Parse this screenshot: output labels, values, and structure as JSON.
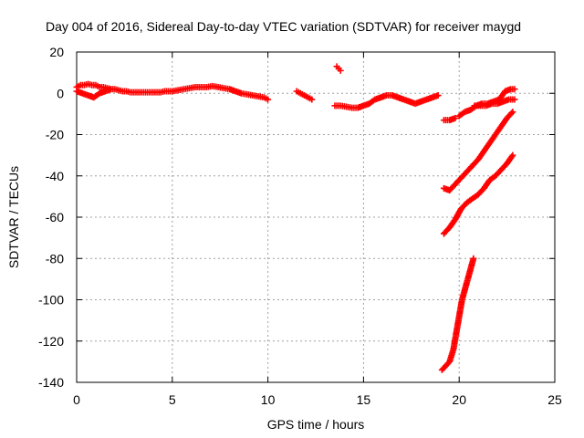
{
  "chart_data": {
    "type": "scatter",
    "title": "Day 004 of 2016, Sidereal Day-to-day VTEC variation (SDTVAR) for receiver maygd",
    "xlabel": "GPS time / hours",
    "ylabel": "SDTVAR / TECUs",
    "xlim": [
      0,
      25
    ],
    "ylim": [
      -140,
      20
    ],
    "xticks": [
      0,
      5,
      10,
      15,
      20,
      25
    ],
    "yticks": [
      20,
      0,
      -20,
      -40,
      -60,
      -80,
      -100,
      -120,
      -140
    ],
    "grid": true,
    "marker": "+",
    "color": "#ff0000",
    "series": [
      {
        "name": "band-0-5h",
        "x": [
          0.0,
          0.2,
          0.4,
          0.6,
          0.8,
          1.0,
          1.2,
          1.4,
          1.6,
          1.8,
          2.0,
          2.2,
          2.4,
          2.6,
          2.8,
          3.0,
          3.2,
          3.4,
          3.6,
          3.8,
          4.0,
          4.2,
          4.4,
          4.6,
          4.8,
          5.0
        ],
        "y": [
          3,
          4,
          4,
          4.5,
          4,
          4,
          3,
          3,
          2.5,
          2,
          2,
          1.5,
          1,
          1,
          0.5,
          0.5,
          0.5,
          0.5,
          0.5,
          0.5,
          0.5,
          0.5,
          0.5,
          1,
          1,
          1
        ]
      },
      {
        "name": "band-0-2h-lower",
        "x": [
          0.0,
          0.3,
          0.6,
          0.9,
          1.2,
          1.5,
          1.8
        ],
        "y": [
          1,
          0,
          -1,
          -2,
          0,
          1,
          2
        ]
      },
      {
        "name": "band-5-10h",
        "x": [
          5.0,
          5.3,
          5.6,
          5.9,
          6.2,
          6.5,
          6.8,
          7.1,
          7.4,
          7.7,
          8.0,
          8.3,
          8.6,
          8.9,
          9.2,
          9.5,
          9.8,
          10.0
        ],
        "y": [
          1,
          1.5,
          2,
          2.5,
          3,
          3,
          3,
          3.5,
          3,
          2.5,
          2,
          1,
          0,
          -0.5,
          -1,
          -1.5,
          -2,
          -3
        ]
      },
      {
        "name": "band-11.5-12.5h",
        "x": [
          11.5,
          11.7,
          11.9,
          12.1,
          12.3
        ],
        "y": [
          1,
          0,
          -1,
          -2,
          -3
        ]
      },
      {
        "name": "band-13.5-14h-upper",
        "x": [
          13.6,
          13.7,
          13.8
        ],
        "y": [
          13,
          12,
          11
        ]
      },
      {
        "name": "band-13.5-19h",
        "x": [
          13.5,
          13.8,
          14.1,
          14.4,
          14.7,
          15.0,
          15.3,
          15.6,
          15.9,
          16.2,
          16.5,
          16.8,
          17.1,
          17.4,
          17.7,
          18.0,
          18.3,
          18.6,
          18.9
        ],
        "y": [
          -6,
          -6,
          -6.5,
          -7,
          -7,
          -6,
          -5,
          -3,
          -2,
          -1,
          -1,
          -2,
          -3,
          -4,
          -5,
          -4,
          -3,
          -2,
          -1
        ]
      },
      {
        "name": "band-19-20h",
        "x": [
          19.2,
          19.5,
          19.8
        ],
        "y": [
          -13,
          -13,
          -12
        ]
      },
      {
        "name": "band-20-23h-upper",
        "x": [
          20.0,
          20.3,
          20.6,
          20.9,
          21.2,
          21.5,
          21.8,
          22.1,
          22.4,
          22.7,
          22.9
        ],
        "y": [
          -11,
          -9,
          -8,
          -6,
          -5,
          -5,
          -4,
          -3,
          1,
          2,
          2
        ]
      },
      {
        "name": "band-20-23h-mid",
        "x": [
          20.8,
          21.1,
          21.4,
          21.7,
          22.0,
          22.3,
          22.6,
          22.9
        ],
        "y": [
          -6,
          -6,
          -6,
          -5,
          -5,
          -4,
          -3,
          -3
        ]
      },
      {
        "name": "ramp-from-minus47",
        "x": [
          19.2,
          19.5,
          19.8,
          20.1,
          20.4,
          20.7,
          21.0,
          21.3,
          21.6,
          21.9,
          22.2,
          22.5,
          22.8
        ],
        "y": [
          -46,
          -47,
          -44,
          -41,
          -38,
          -35,
          -32,
          -28,
          -24,
          -20,
          -16,
          -12,
          -9
        ]
      },
      {
        "name": "ramp-from-minus68",
        "x": [
          19.2,
          19.5,
          19.8,
          20.1,
          20.4,
          20.7,
          21.0,
          21.3,
          21.6,
          21.9,
          22.2,
          22.5,
          22.8
        ],
        "y": [
          -68,
          -65,
          -61,
          -56,
          -53,
          -51,
          -49,
          -46,
          -42,
          -40,
          -37,
          -34,
          -30
        ]
      },
      {
        "name": "ramp-from-minus134",
        "x": [
          19.1,
          19.3,
          19.5,
          19.7,
          19.85,
          20.0,
          20.15,
          20.3,
          20.45,
          20.6,
          20.75
        ],
        "y": [
          -134,
          -132,
          -130,
          -124,
          -116,
          -108,
          -100,
          -95,
          -90,
          -85,
          -80
        ]
      }
    ]
  }
}
